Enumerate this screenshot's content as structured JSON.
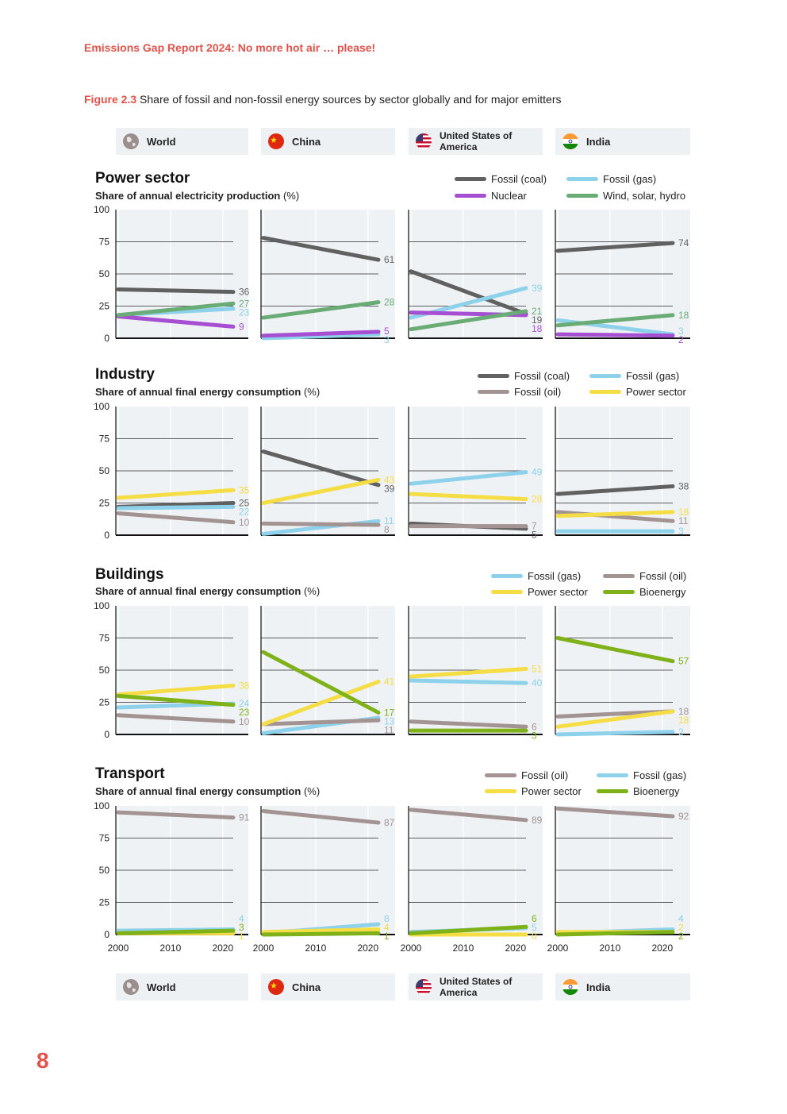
{
  "header": {
    "running_head": "Emissions Gap Report 2024: No more hot air … please!"
  },
  "figure": {
    "number": "Figure 2.3",
    "caption": "Share of fossil and non-fossil energy sources by sector globally and for major emitters"
  },
  "countries": [
    {
      "name": "World",
      "icon": "globe-icon"
    },
    {
      "name": "China",
      "icon": "china-flag-icon"
    },
    {
      "name": "United States of America",
      "icon": "usa-flag-icon"
    },
    {
      "name": "India",
      "icon": "india-flag-icon"
    }
  ],
  "colors": {
    "coal": "#616161",
    "gas": "#8ed1ea",
    "oil": "#a39393",
    "nuclear": "#a64fd2",
    "renewables": "#6aac76",
    "power": "#f5dd45",
    "bioenergy": "#7fb219",
    "accent": "#e0524a",
    "panel_bg": "#eff2f5"
  },
  "page": {
    "number": "8"
  },
  "chart_data": [
    {
      "type": "line",
      "title": "Power sector",
      "subtitle": "Share of annual electricity production",
      "unit": "(%)",
      "x_ticks": [
        "2000",
        "2010",
        "2020"
      ],
      "y_ticks": [
        "0",
        "25",
        "50",
        "75",
        "100"
      ],
      "ylim": [
        0,
        100
      ],
      "legend": [
        {
          "label": "Fossil (coal)",
          "color": "#616161"
        },
        {
          "label": "Fossil (gas)",
          "color": "#8ed1ea"
        },
        {
          "label": "Nuclear",
          "color": "#a64fd2"
        },
        {
          "label": "Wind, solar, hydro",
          "color": "#6aac76"
        }
      ],
      "panels": [
        {
          "country": "World",
          "series": [
            {
              "name": "Fossil (coal)",
              "color": "#616161",
              "start": 38,
              "end": 36,
              "label": "36"
            },
            {
              "name": "Fossil (gas)",
              "color": "#8ed1ea",
              "start": 18,
              "end": 23,
              "label": "23"
            },
            {
              "name": "Nuclear",
              "color": "#a64fd2",
              "start": 17,
              "end": 9,
              "label": "9"
            },
            {
              "name": "Wind, solar, hydro",
              "color": "#6aac76",
              "start": 18,
              "end": 27,
              "label": "27"
            }
          ]
        },
        {
          "country": "China",
          "series": [
            {
              "name": "Fossil (coal)",
              "color": "#616161",
              "start": 78,
              "end": 61,
              "label": "61"
            },
            {
              "name": "Fossil (gas)",
              "color": "#8ed1ea",
              "start": 0,
              "end": 3,
              "label": "3"
            },
            {
              "name": "Nuclear",
              "color": "#a64fd2",
              "start": 2,
              "end": 5,
              "label": "5"
            },
            {
              "name": "Wind, solar, hydro",
              "color": "#6aac76",
              "start": 16,
              "end": 28,
              "label": "28"
            }
          ]
        },
        {
          "country": "United States of America",
          "series": [
            {
              "name": "Fossil (coal)",
              "color": "#616161",
              "start": 52,
              "end": 19,
              "label": "19"
            },
            {
              "name": "Fossil (gas)",
              "color": "#8ed1ea",
              "start": 16,
              "end": 39,
              "label": "39"
            },
            {
              "name": "Nuclear",
              "color": "#a64fd2",
              "start": 20,
              "end": 18,
              "label": "18"
            },
            {
              "name": "Wind, solar, hydro",
              "color": "#6aac76",
              "start": 7,
              "end": 21,
              "label": "21"
            }
          ]
        },
        {
          "country": "India",
          "series": [
            {
              "name": "Fossil (coal)",
              "color": "#616161",
              "start": 68,
              "end": 74,
              "label": "74"
            },
            {
              "name": "Fossil (gas)",
              "color": "#8ed1ea",
              "start": 14,
              "end": 3,
              "label": "3"
            },
            {
              "name": "Nuclear",
              "color": "#a64fd2",
              "start": 3,
              "end": 2,
              "label": "2"
            },
            {
              "name": "Wind, solar, hydro",
              "color": "#6aac76",
              "start": 10,
              "end": 18,
              "label": "18"
            }
          ]
        }
      ]
    },
    {
      "type": "line",
      "title": "Industry",
      "subtitle": "Share of annual final energy consumption",
      "unit": "(%)",
      "x_ticks": [
        "2000",
        "2010",
        "2020"
      ],
      "y_ticks": [
        "0",
        "25",
        "50",
        "75",
        "100"
      ],
      "ylim": [
        0,
        100
      ],
      "legend": [
        {
          "label": "Fossil (coal)",
          "color": "#616161"
        },
        {
          "label": "Fossil (gas)",
          "color": "#8ed1ea"
        },
        {
          "label": "Fossil (oil)",
          "color": "#a39393"
        },
        {
          "label": "Power sector",
          "color": "#f5dd45"
        }
      ],
      "panels": [
        {
          "country": "World",
          "series": [
            {
              "name": "Fossil (coal)",
              "color": "#616161",
              "start": 22,
              "end": 25,
              "label": "25"
            },
            {
              "name": "Fossil (gas)",
              "color": "#8ed1ea",
              "start": 21,
              "end": 22,
              "label": "22"
            },
            {
              "name": "Fossil (oil)",
              "color": "#a39393",
              "start": 17,
              "end": 10,
              "label": "10"
            },
            {
              "name": "Power sector",
              "color": "#f5dd45",
              "start": 29,
              "end": 35,
              "label": "35"
            }
          ]
        },
        {
          "country": "China",
          "series": [
            {
              "name": "Fossil (coal)",
              "color": "#616161",
              "start": 65,
              "end": 39,
              "label": "39"
            },
            {
              "name": "Fossil (gas)",
              "color": "#8ed1ea",
              "start": 1,
              "end": 11,
              "label": "11"
            },
            {
              "name": "Fossil (oil)",
              "color": "#a39393",
              "start": 9,
              "end": 8,
              "label": "8"
            },
            {
              "name": "Power sector",
              "color": "#f5dd45",
              "start": 25,
              "end": 43,
              "label": "43"
            }
          ]
        },
        {
          "country": "United States of America",
          "series": [
            {
              "name": "Fossil (coal)",
              "color": "#616161",
              "start": 9,
              "end": 5,
              "label": "5"
            },
            {
              "name": "Fossil (gas)",
              "color": "#8ed1ea",
              "start": 40,
              "end": 49,
              "label": "49"
            },
            {
              "name": "Fossil (oil)",
              "color": "#a39393",
              "start": 7,
              "end": 7,
              "label": "7"
            },
            {
              "name": "Power sector",
              "color": "#f5dd45",
              "start": 32,
              "end": 28,
              "label": "28"
            }
          ]
        },
        {
          "country": "India",
          "series": [
            {
              "name": "Fossil (coal)",
              "color": "#616161",
              "start": 32,
              "end": 38,
              "label": "38"
            },
            {
              "name": "Fossil (gas)",
              "color": "#8ed1ea",
              "start": 3,
              "end": 3,
              "label": "3"
            },
            {
              "name": "Fossil (oil)",
              "color": "#a39393",
              "start": 18,
              "end": 11,
              "label": "11"
            },
            {
              "name": "Power sector",
              "color": "#f5dd45",
              "start": 15,
              "end": 18,
              "label": "18"
            }
          ]
        }
      ]
    },
    {
      "type": "line",
      "title": "Buildings",
      "subtitle": "Share of annual final energy consumption",
      "unit": "(%)",
      "x_ticks": [
        "2000",
        "2010",
        "2020"
      ],
      "y_ticks": [
        "0",
        "25",
        "50",
        "75",
        "100"
      ],
      "ylim": [
        0,
        100
      ],
      "legend": [
        {
          "label": "Fossil (gas)",
          "color": "#8ed1ea"
        },
        {
          "label": "Fossil (oil)",
          "color": "#a39393"
        },
        {
          "label": "Power sector",
          "color": "#f5dd45"
        },
        {
          "label": "Bioenergy",
          "color": "#7fb219"
        }
      ],
      "panels": [
        {
          "country": "World",
          "series": [
            {
              "name": "Fossil (gas)",
              "color": "#8ed1ea",
              "start": 21,
              "end": 24,
              "label": "24"
            },
            {
              "name": "Fossil (oil)",
              "color": "#a39393",
              "start": 15,
              "end": 10,
              "label": "10"
            },
            {
              "name": "Power sector",
              "color": "#f5dd45",
              "start": 31,
              "end": 38,
              "label": "38"
            },
            {
              "name": "Bioenergy",
              "color": "#7fb219",
              "start": 30,
              "end": 23,
              "label": "23"
            }
          ]
        },
        {
          "country": "China",
          "series": [
            {
              "name": "Fossil (gas)",
              "color": "#8ed1ea",
              "start": 1,
              "end": 13,
              "label": "13"
            },
            {
              "name": "Fossil (oil)",
              "color": "#a39393",
              "start": 8,
              "end": 11,
              "label": "11"
            },
            {
              "name": "Power sector",
              "color": "#f5dd45",
              "start": 8,
              "end": 41,
              "label": "41"
            },
            {
              "name": "Bioenergy",
              "color": "#7fb219",
              "start": 64,
              "end": 17,
              "label": "17"
            }
          ]
        },
        {
          "country": "United States of America",
          "series": [
            {
              "name": "Fossil (gas)",
              "color": "#8ed1ea",
              "start": 42,
              "end": 40,
              "label": "40"
            },
            {
              "name": "Fossil (oil)",
              "color": "#a39393",
              "start": 10,
              "end": 6,
              "label": "6"
            },
            {
              "name": "Power sector",
              "color": "#f5dd45",
              "start": 45,
              "end": 51,
              "label": "51"
            },
            {
              "name": "Bioenergy",
              "color": "#7fb219",
              "start": 3,
              "end": 3,
              "label": "3"
            }
          ]
        },
        {
          "country": "India",
          "series": [
            {
              "name": "Fossil (gas)",
              "color": "#8ed1ea",
              "start": 0,
              "end": 2,
              "label": "2"
            },
            {
              "name": "Fossil (oil)",
              "color": "#a39393",
              "start": 14,
              "end": 18,
              "label": "18"
            },
            {
              "name": "Power sector",
              "color": "#f5dd45",
              "start": 6,
              "end": 18,
              "label": "18"
            },
            {
              "name": "Bioenergy",
              "color": "#7fb219",
              "start": 75,
              "end": 57,
              "label": "57"
            }
          ]
        }
      ]
    },
    {
      "type": "line",
      "title": "Transport",
      "subtitle": "Share of annual final energy consumption",
      "unit": "(%)",
      "x_ticks": [
        "2000",
        "2010",
        "2020"
      ],
      "y_ticks": [
        "0",
        "25",
        "50",
        "75",
        "100"
      ],
      "ylim": [
        0,
        100
      ],
      "legend": [
        {
          "label": "Fossil (oil)",
          "color": "#a39393"
        },
        {
          "label": "Fossil (gas)",
          "color": "#8ed1ea"
        },
        {
          "label": "Power sector",
          "color": "#f5dd45"
        },
        {
          "label": "Bioenergy",
          "color": "#7fb219"
        }
      ],
      "panels": [
        {
          "country": "World",
          "series": [
            {
              "name": "Fossil (oil)",
              "color": "#a39393",
              "start": 95,
              "end": 91,
              "label": "91"
            },
            {
              "name": "Fossil (gas)",
              "color": "#8ed1ea",
              "start": 3,
              "end": 4,
              "label": "4"
            },
            {
              "name": "Power sector",
              "color": "#f5dd45",
              "start": 1,
              "end": 1,
              "label": "1"
            },
            {
              "name": "Bioenergy",
              "color": "#7fb219",
              "start": 1,
              "end": 3,
              "label": "3"
            }
          ]
        },
        {
          "country": "China",
          "series": [
            {
              "name": "Fossil (oil)",
              "color": "#a39393",
              "start": 96,
              "end": 87,
              "label": "87"
            },
            {
              "name": "Fossil (gas)",
              "color": "#8ed1ea",
              "start": 1,
              "end": 8,
              "label": "8"
            },
            {
              "name": "Power sector",
              "color": "#f5dd45",
              "start": 2,
              "end": 4,
              "label": "4"
            },
            {
              "name": "Bioenergy",
              "color": "#7fb219",
              "start": 0,
              "end": 1,
              "label": "1"
            }
          ]
        },
        {
          "country": "United States of America",
          "series": [
            {
              "name": "Fossil (oil)",
              "color": "#a39393",
              "start": 97,
              "end": 89,
              "label": "89"
            },
            {
              "name": "Fossil (gas)",
              "color": "#8ed1ea",
              "start": 2,
              "end": 5,
              "label": "5"
            },
            {
              "name": "Power sector",
              "color": "#f5dd45",
              "start": 0,
              "end": 0,
              "label": "0"
            },
            {
              "name": "Bioenergy",
              "color": "#7fb219",
              "start": 1,
              "end": 6,
              "label": "6"
            }
          ]
        },
        {
          "country": "India",
          "series": [
            {
              "name": "Fossil (oil)",
              "color": "#a39393",
              "start": 98,
              "end": 92,
              "label": "92"
            },
            {
              "name": "Fossil (gas)",
              "color": "#8ed1ea",
              "start": 1,
              "end": 4,
              "label": "4"
            },
            {
              "name": "Power sector",
              "color": "#f5dd45",
              "start": 2,
              "end": 2,
              "label": "2"
            },
            {
              "name": "Bioenergy",
              "color": "#7fb219",
              "start": 0,
              "end": 2,
              "label": "2"
            }
          ]
        }
      ]
    }
  ]
}
